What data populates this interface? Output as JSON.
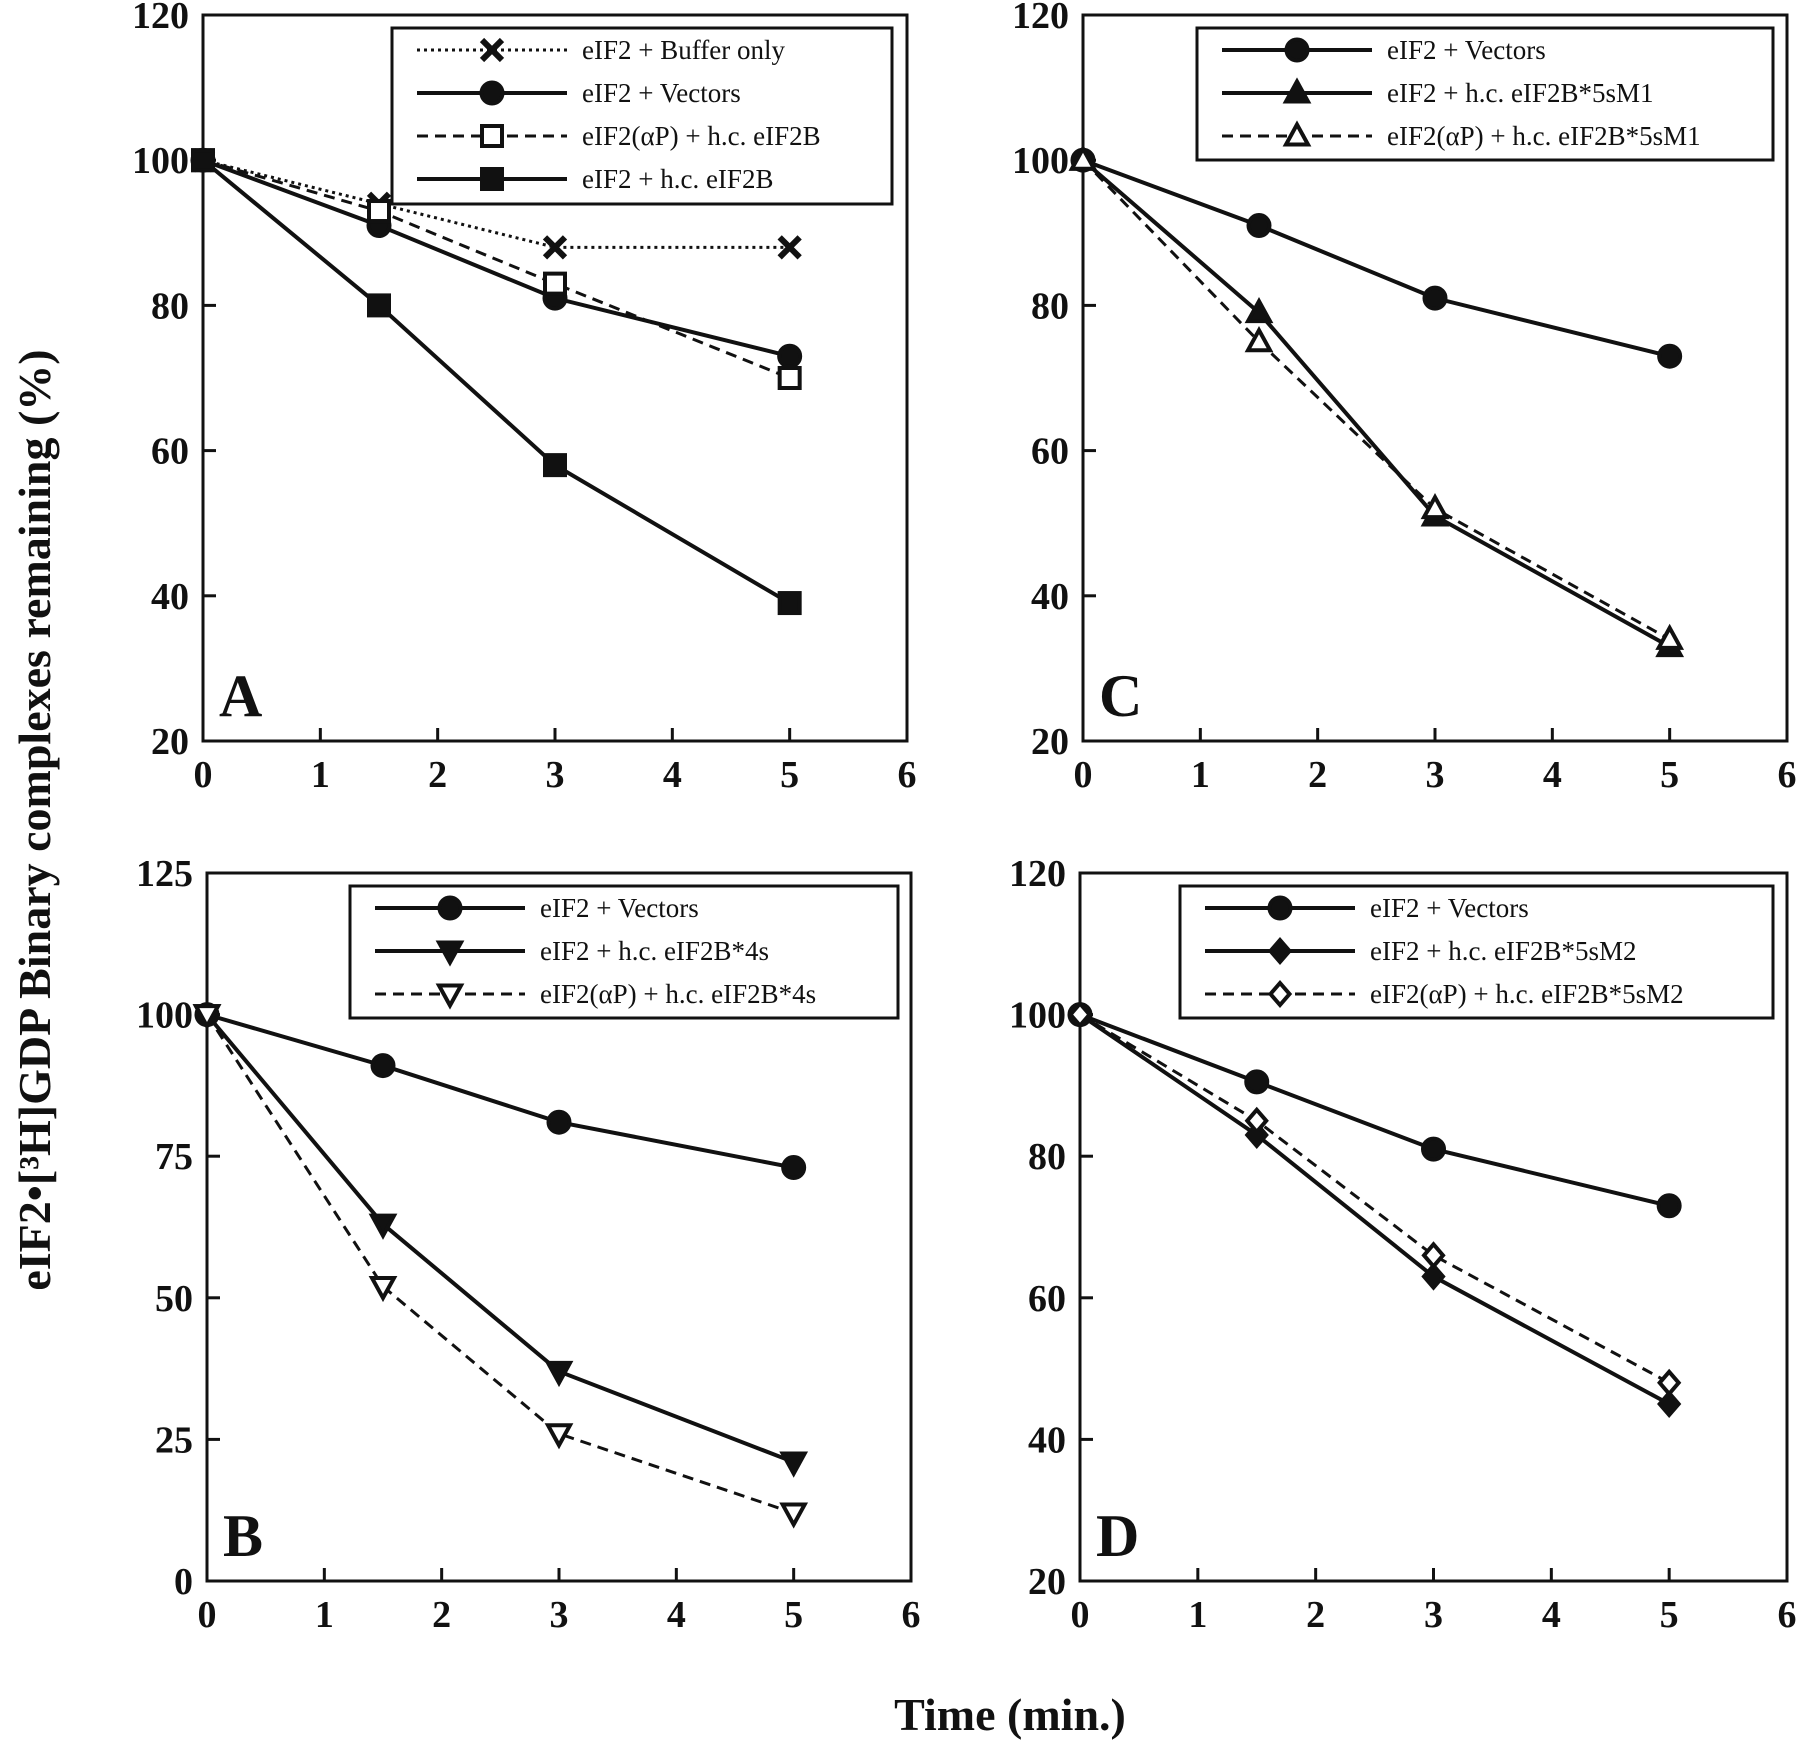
{
  "figure": {
    "ylabel": "eIF2•[³H]GDP Binary complexes remaining (%)",
    "xlabel": "Time (min.)"
  },
  "chart_data": [
    {
      "type": "line",
      "panel": "A",
      "xlim": [
        0,
        6
      ],
      "ylim": [
        20,
        120
      ],
      "xticks": [
        0,
        1,
        2,
        3,
        4,
        5,
        6
      ],
      "yticks": [
        20,
        40,
        60,
        80,
        100,
        120
      ],
      "legend_position": "top-right",
      "series": [
        {
          "name": "eIF2 + Buffer only",
          "marker": "x",
          "line": "dotted",
          "x": [
            0,
            1.5,
            3,
            5
          ],
          "y": [
            100,
            94,
            88,
            88
          ]
        },
        {
          "name": "eIF2 + Vectors",
          "marker": "circle-filled",
          "line": "solid",
          "x": [
            0,
            1.5,
            3,
            5
          ],
          "y": [
            100,
            91,
            81,
            73
          ]
        },
        {
          "name": "eIF2(αP) + h.c. eIF2B",
          "marker": "square-open",
          "line": "dashed",
          "x": [
            0,
            1.5,
            3,
            5
          ],
          "y": [
            100,
            93,
            83,
            70
          ]
        },
        {
          "name": "eIF2 + h.c. eIF2B",
          "marker": "square-filled",
          "line": "solid",
          "x": [
            0,
            1.5,
            3,
            5
          ],
          "y": [
            100,
            80,
            58,
            39
          ]
        }
      ]
    },
    {
      "type": "line",
      "panel": "C",
      "xlim": [
        0,
        6
      ],
      "ylim": [
        20,
        120
      ],
      "xticks": [
        0,
        1,
        2,
        3,
        4,
        5,
        6
      ],
      "yticks": [
        20,
        40,
        60,
        80,
        100,
        120
      ],
      "legend_position": "top-right",
      "series": [
        {
          "name": "eIF2 + Vectors",
          "marker": "circle-filled",
          "line": "solid",
          "x": [
            0,
            1.5,
            3,
            5
          ],
          "y": [
            100,
            91,
            81,
            73
          ]
        },
        {
          "name": "eIF2 + h.c. eIF2B*5sM1",
          "marker": "triangle-up-filled",
          "line": "solid",
          "x": [
            0,
            1.5,
            3,
            5
          ],
          "y": [
            100,
            79,
            51,
            33
          ]
        },
        {
          "name": "eIF2(αP) + h.c. eIF2B*5sM1",
          "marker": "triangle-up-open",
          "line": "dashed",
          "x": [
            0,
            1.5,
            3,
            5
          ],
          "y": [
            100,
            75,
            52,
            34
          ]
        }
      ]
    },
    {
      "type": "line",
      "panel": "B",
      "xlim": [
        0,
        6
      ],
      "ylim": [
        0,
        125
      ],
      "xticks": [
        0,
        1,
        2,
        3,
        4,
        5,
        6
      ],
      "yticks": [
        0,
        25,
        50,
        75,
        100,
        125
      ],
      "legend_position": "top-right",
      "series": [
        {
          "name": "eIF2 + Vectors",
          "marker": "circle-filled",
          "line": "solid",
          "x": [
            0,
            1.5,
            3,
            5
          ],
          "y": [
            100,
            91,
            81,
            73
          ]
        },
        {
          "name": "eIF2 +  h.c. eIF2B*4s",
          "marker": "triangle-down-filled",
          "line": "solid",
          "x": [
            0,
            1.5,
            3,
            5
          ],
          "y": [
            100,
            63,
            37,
            21
          ]
        },
        {
          "name": "eIF2(αP) +  h.c. eIF2B*4s",
          "marker": "triangle-down-open",
          "line": "dashed",
          "x": [
            0,
            1.5,
            3,
            5
          ],
          "y": [
            100,
            52,
            26,
            12
          ]
        }
      ]
    },
    {
      "type": "line",
      "panel": "D",
      "xlim": [
        0,
        6
      ],
      "ylim": [
        20,
        120
      ],
      "xticks": [
        0,
        1,
        2,
        3,
        4,
        5,
        6
      ],
      "yticks": [
        20,
        40,
        60,
        80,
        100,
        120
      ],
      "legend_position": "top-right",
      "series": [
        {
          "name": "eIF2 + Vectors",
          "marker": "circle-filled",
          "line": "solid",
          "x": [
            0,
            1.5,
            3,
            5
          ],
          "y": [
            100,
            90.5,
            81,
            73
          ]
        },
        {
          "name": "eIF2 +  h.c. eIF2B*5sM2",
          "marker": "diamond-filled",
          "line": "solid",
          "x": [
            0,
            1.5,
            3,
            5
          ],
          "y": [
            100,
            83,
            63,
            45
          ]
        },
        {
          "name": "eIF2(αP) +  h.c. eIF2B*5sM2",
          "marker": "diamond-open",
          "line": "dashed",
          "x": [
            0,
            1.5,
            3,
            5
          ],
          "y": [
            100,
            85,
            66,
            48
          ]
        }
      ]
    }
  ]
}
